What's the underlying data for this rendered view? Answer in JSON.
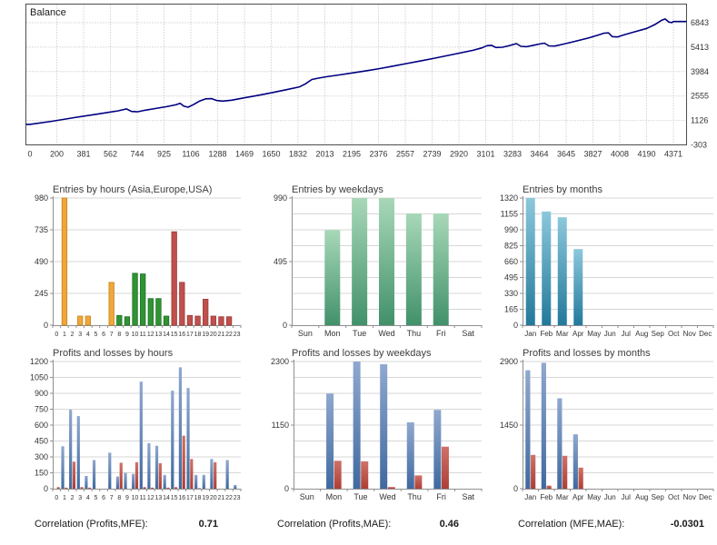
{
  "footer": {
    "correlations": [
      {
        "label": "Correlation (Profits,MFE):",
        "value": "0.71"
      },
      {
        "label": "Correlation (Profits,MAE):",
        "value": "0.46"
      },
      {
        "label": "Correlation (MFE,MAE):",
        "value": "-0.0301"
      }
    ]
  },
  "chart_data": [
    {
      "type": "line",
      "title": "Balance",
      "line_color": "#000080",
      "x_ticks": [
        0,
        200,
        381,
        562,
        744,
        925,
        1106,
        1288,
        1469,
        1650,
        1832,
        2013,
        2195,
        2376,
        2557,
        2739,
        2920,
        3101,
        3283,
        3464,
        3645,
        3827,
        4008,
        4190,
        4371
      ],
      "y_ticks": [
        6843,
        5413,
        3984,
        2555,
        1126,
        -303
      ],
      "xlim": [
        0,
        4371
      ],
      "ylim": [
        -303,
        7440
      ],
      "grid": true,
      "points": [
        [
          0,
          900
        ],
        [
          150,
          1080
        ],
        [
          300,
          1290
        ],
        [
          450,
          1490
        ],
        [
          600,
          1690
        ],
        [
          655,
          1800
        ],
        [
          690,
          1650
        ],
        [
          730,
          1630
        ],
        [
          780,
          1720
        ],
        [
          850,
          1820
        ],
        [
          925,
          1930
        ],
        [
          990,
          2040
        ],
        [
          1020,
          2130
        ],
        [
          1045,
          1960
        ],
        [
          1075,
          1900
        ],
        [
          1110,
          2050
        ],
        [
          1150,
          2250
        ],
        [
          1195,
          2390
        ],
        [
          1235,
          2400
        ],
        [
          1270,
          2290
        ],
        [
          1310,
          2260
        ],
        [
          1370,
          2310
        ],
        [
          1469,
          2470
        ],
        [
          1560,
          2610
        ],
        [
          1650,
          2760
        ],
        [
          1740,
          2920
        ],
        [
          1832,
          3090
        ],
        [
          1870,
          3260
        ],
        [
          1915,
          3520
        ],
        [
          1960,
          3600
        ],
        [
          2013,
          3680
        ],
        [
          2100,
          3790
        ],
        [
          2195,
          3910
        ],
        [
          2290,
          4040
        ],
        [
          2376,
          4160
        ],
        [
          2470,
          4310
        ],
        [
          2557,
          4450
        ],
        [
          2650,
          4600
        ],
        [
          2739,
          4750
        ],
        [
          2830,
          4910
        ],
        [
          2920,
          5070
        ],
        [
          3010,
          5230
        ],
        [
          3070,
          5370
        ],
        [
          3105,
          5500
        ],
        [
          3135,
          5520
        ],
        [
          3165,
          5390
        ],
        [
          3210,
          5410
        ],
        [
          3250,
          5490
        ],
        [
          3283,
          5570
        ],
        [
          3305,
          5620
        ],
        [
          3335,
          5460
        ],
        [
          3375,
          5440
        ],
        [
          3425,
          5530
        ],
        [
          3464,
          5600
        ],
        [
          3495,
          5650
        ],
        [
          3525,
          5490
        ],
        [
          3565,
          5480
        ],
        [
          3610,
          5560
        ],
        [
          3700,
          5750
        ],
        [
          3790,
          5940
        ],
        [
          3860,
          6120
        ],
        [
          3900,
          6230
        ],
        [
          3930,
          6250
        ],
        [
          3955,
          6030
        ],
        [
          3990,
          6010
        ],
        [
          4030,
          6120
        ],
        [
          4100,
          6290
        ],
        [
          4190,
          6510
        ],
        [
          4250,
          6760
        ],
        [
          4290,
          6980
        ],
        [
          4315,
          7060
        ],
        [
          4340,
          6880
        ],
        [
          4360,
          6850
        ],
        [
          4371,
          6910
        ]
      ]
    },
    {
      "type": "bar",
      "title": "Entries by hours (Asia,Europe,USA)",
      "categories": [
        "0",
        "1",
        "2",
        "3",
        "4",
        "5",
        "6",
        "7",
        "8",
        "9",
        "10",
        "11",
        "12",
        "13",
        "14",
        "15",
        "16",
        "17",
        "18",
        "19",
        "20",
        "21",
        "22",
        "23"
      ],
      "values": [
        0,
        980,
        0,
        70,
        70,
        0,
        0,
        330,
        75,
        65,
        400,
        395,
        205,
        205,
        70,
        720,
        330,
        75,
        70,
        200,
        70,
        65,
        65,
        0
      ],
      "y_ticks": [
        0,
        245,
        490,
        735,
        980
      ],
      "grid_step": 245,
      "sessions": [
        "asia",
        "asia",
        "asia",
        "asia",
        "asia",
        "asia",
        "asia",
        "asia",
        "europe",
        "europe",
        "europe",
        "europe",
        "europe",
        "europe",
        "europe",
        "usa",
        "usa",
        "usa",
        "usa",
        "usa",
        "usa",
        "usa",
        "usa",
        "usa"
      ],
      "session_colors": {
        "asia": {
          "fill": "#EFA63A",
          "stroke": "#C4861B"
        },
        "europe": {
          "fill": "#2F9434",
          "stroke": "#1F6F23"
        },
        "usa": {
          "fill": "#C0504D",
          "stroke": "#993B38"
        }
      }
    },
    {
      "type": "bar",
      "title": "Entries by weekdays",
      "categories": [
        "Sun",
        "Mon",
        "Tue",
        "Wed",
        "Thu",
        "Fri",
        "Sat"
      ],
      "values": [
        0,
        740,
        990,
        990,
        870,
        870,
        0
      ],
      "y_ticks": [
        0,
        495,
        990
      ],
      "grid_step": 123.75,
      "gradient": {
        "top": "#A8D8B8",
        "bottom": "#41916A"
      }
    },
    {
      "type": "bar",
      "title": "Entries by months",
      "categories": [
        "Jan",
        "Feb",
        "Mar",
        "Apr",
        "May",
        "Jun",
        "Jul",
        "Aug",
        "Sep",
        "Oct",
        "Nov",
        "Dec"
      ],
      "values": [
        1320,
        1180,
        1120,
        790,
        0,
        0,
        0,
        0,
        0,
        0,
        0,
        0
      ],
      "y_ticks": [
        0,
        165,
        330,
        495,
        660,
        825,
        990,
        1155,
        1320
      ],
      "grid_step": 165,
      "gradient": {
        "top": "#8BC8DC",
        "bottom": "#23799B"
      }
    },
    {
      "type": "grouped_bar",
      "title": "Profits and losses by hours",
      "categories": [
        "0",
        "1",
        "2",
        "3",
        "4",
        "5",
        "6",
        "7",
        "8",
        "9",
        "10",
        "11",
        "12",
        "13",
        "14",
        "15",
        "16",
        "17",
        "18",
        "19",
        "20",
        "21",
        "22",
        "23"
      ],
      "series": [
        {
          "name": "profits",
          "color_top": "#8FA8CF",
          "color_bottom": "#40699F",
          "values": [
            0,
            400,
            745,
            685,
            120,
            270,
            0,
            340,
            115,
            150,
            140,
            1010,
            430,
            405,
            130,
            925,
            1145,
            950,
            130,
            130,
            280,
            0,
            270,
            35
          ]
        },
        {
          "name": "losses",
          "color_top": "#CE7268",
          "color_bottom": "#AE3E36",
          "values": [
            15,
            10,
            255,
            15,
            10,
            0,
            0,
            0,
            245,
            0,
            250,
            15,
            10,
            240,
            10,
            15,
            500,
            280,
            5,
            0,
            250,
            0,
            0,
            0
          ]
        }
      ],
      "y_ticks": [
        0,
        150,
        300,
        450,
        600,
        750,
        900,
        1050,
        1200
      ],
      "grid_step": 150
    },
    {
      "type": "grouped_bar",
      "title": "Profits and losses by weekdays",
      "categories": [
        "Sun",
        "Mon",
        "Tue",
        "Wed",
        "Thu",
        "Fri",
        "Sat"
      ],
      "series": [
        {
          "name": "profits",
          "color_top": "#8FA8CF",
          "color_bottom": "#40699F",
          "values": [
            0,
            1720,
            2300,
            2250,
            1200,
            1425,
            0
          ]
        },
        {
          "name": "losses",
          "color_top": "#CE7268",
          "color_bottom": "#AE3E36",
          "values": [
            0,
            505,
            495,
            30,
            240,
            760,
            0
          ]
        }
      ],
      "y_ticks": [
        0,
        1150,
        2300
      ],
      "grid_step": 287.5
    },
    {
      "type": "grouped_bar",
      "title": "Profits and losses by months",
      "categories": [
        "Jan",
        "Feb",
        "Mar",
        "Apr",
        "May",
        "Jun",
        "Jul",
        "Aug",
        "Sep",
        "Oct",
        "Nov",
        "Dec"
      ],
      "series": [
        {
          "name": "profits",
          "color_top": "#8FA8CF",
          "color_bottom": "#40699F",
          "values": [
            2700,
            2870,
            2060,
            1240,
            0,
            0,
            0,
            0,
            0,
            0,
            0,
            0
          ]
        },
        {
          "name": "losses",
          "color_top": "#CE7268",
          "color_bottom": "#AE3E36",
          "values": [
            770,
            70,
            750,
            480,
            0,
            0,
            0,
            0,
            0,
            0,
            0,
            0
          ]
        }
      ],
      "y_ticks": [
        0,
        1450,
        2900
      ],
      "grid_step": 362.5
    }
  ]
}
